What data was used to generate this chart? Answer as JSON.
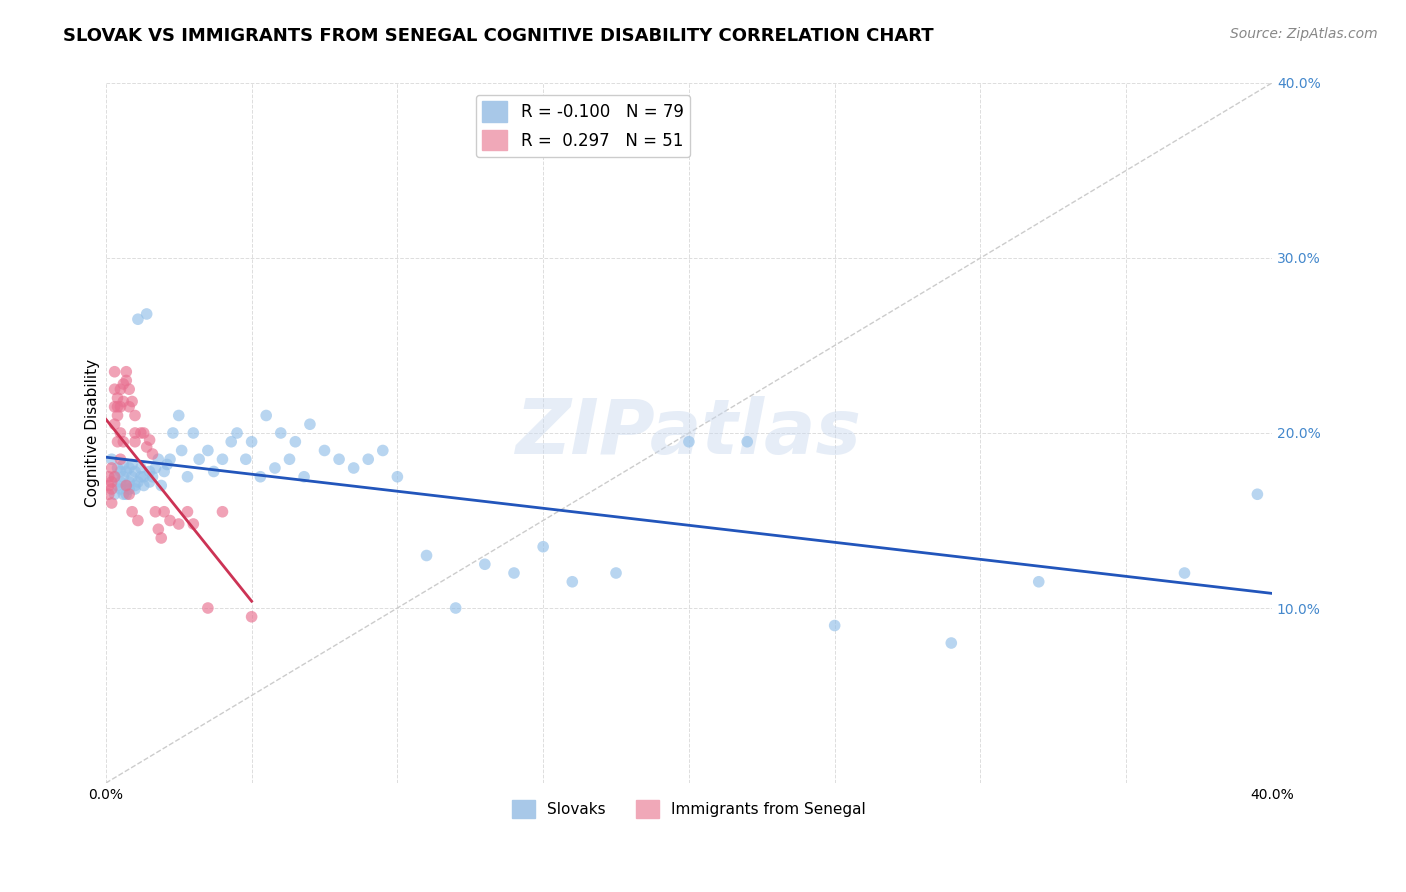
{
  "title": "SLOVAK VS IMMIGRANTS FROM SENEGAL COGNITIVE DISABILITY CORRELATION CHART",
  "source": "Source: ZipAtlas.com",
  "ylabel": "Cognitive Disability",
  "xlim": [
    0.0,
    0.4
  ],
  "ylim": [
    0.0,
    0.4
  ],
  "watermark": "ZIPatlas",
  "slovaks": {
    "color": "#92bfe8",
    "alpha": 0.65,
    "size": 70,
    "x": [
      0.002,
      0.003,
      0.003,
      0.004,
      0.004,
      0.005,
      0.005,
      0.005,
      0.006,
      0.006,
      0.006,
      0.007,
      0.007,
      0.007,
      0.008,
      0.008,
      0.008,
      0.009,
      0.009,
      0.01,
      0.01,
      0.01,
      0.011,
      0.011,
      0.012,
      0.012,
      0.013,
      0.013,
      0.014,
      0.015,
      0.015,
      0.016,
      0.017,
      0.018,
      0.019,
      0.02,
      0.021,
      0.022,
      0.023,
      0.025,
      0.026,
      0.028,
      0.03,
      0.032,
      0.035,
      0.037,
      0.04,
      0.043,
      0.045,
      0.048,
      0.05,
      0.053,
      0.055,
      0.058,
      0.06,
      0.063,
      0.065,
      0.068,
      0.07,
      0.075,
      0.08,
      0.085,
      0.09,
      0.095,
      0.1,
      0.11,
      0.12,
      0.13,
      0.14,
      0.15,
      0.16,
      0.175,
      0.2,
      0.22,
      0.25,
      0.29,
      0.32,
      0.37,
      0.395
    ],
    "y": [
      0.185,
      0.175,
      0.165,
      0.17,
      0.18,
      0.172,
      0.168,
      0.178,
      0.165,
      0.175,
      0.182,
      0.17,
      0.178,
      0.165,
      0.172,
      0.18,
      0.168,
      0.175,
      0.182,
      0.17,
      0.168,
      0.178,
      0.172,
      0.265,
      0.175,
      0.18,
      0.17,
      0.175,
      0.268,
      0.172,
      0.178,
      0.175,
      0.18,
      0.185,
      0.17,
      0.178,
      0.182,
      0.185,
      0.2,
      0.21,
      0.19,
      0.175,
      0.2,
      0.185,
      0.19,
      0.178,
      0.185,
      0.195,
      0.2,
      0.185,
      0.195,
      0.175,
      0.21,
      0.18,
      0.2,
      0.185,
      0.195,
      0.175,
      0.205,
      0.19,
      0.185,
      0.18,
      0.185,
      0.19,
      0.175,
      0.13,
      0.1,
      0.125,
      0.12,
      0.135,
      0.115,
      0.12,
      0.195,
      0.195,
      0.09,
      0.08,
      0.115,
      0.12,
      0.165
    ]
  },
  "senegal": {
    "color": "#e87090",
    "alpha": 0.65,
    "size": 70,
    "x": [
      0.001,
      0.001,
      0.001,
      0.002,
      0.002,
      0.002,
      0.002,
      0.003,
      0.003,
      0.003,
      0.003,
      0.003,
      0.004,
      0.004,
      0.004,
      0.004,
      0.005,
      0.005,
      0.005,
      0.005,
      0.006,
      0.006,
      0.006,
      0.007,
      0.007,
      0.007,
      0.008,
      0.008,
      0.008,
      0.009,
      0.009,
      0.01,
      0.01,
      0.01,
      0.011,
      0.012,
      0.013,
      0.014,
      0.015,
      0.016,
      0.017,
      0.018,
      0.019,
      0.02,
      0.022,
      0.025,
      0.028,
      0.03,
      0.035,
      0.04,
      0.05
    ],
    "y": [
      0.175,
      0.17,
      0.165,
      0.18,
      0.172,
      0.168,
      0.16,
      0.175,
      0.215,
      0.225,
      0.235,
      0.205,
      0.22,
      0.215,
      0.21,
      0.195,
      0.2,
      0.225,
      0.215,
      0.185,
      0.228,
      0.218,
      0.195,
      0.23,
      0.235,
      0.17,
      0.225,
      0.215,
      0.165,
      0.218,
      0.155,
      0.21,
      0.195,
      0.2,
      0.15,
      0.2,
      0.2,
      0.192,
      0.196,
      0.188,
      0.155,
      0.145,
      0.14,
      0.155,
      0.15,
      0.148,
      0.155,
      0.148,
      0.1,
      0.155,
      0.095
    ]
  },
  "trend_slovak_color": "#2255bb",
  "trend_senegal_color": "#cc3355",
  "trend_senegal_visible_xlim": [
    0.0,
    0.05
  ],
  "diagonal_color": "#cccccc",
  "grid_color": "#dddddd",
  "background_color": "#ffffff",
  "title_fontsize": 13,
  "source_fontsize": 10,
  "ylabel_fontsize": 11,
  "tick_fontsize": 10,
  "watermark_fontsize": 55,
  "watermark_color": "#c8d8ee",
  "watermark_alpha": 0.45
}
